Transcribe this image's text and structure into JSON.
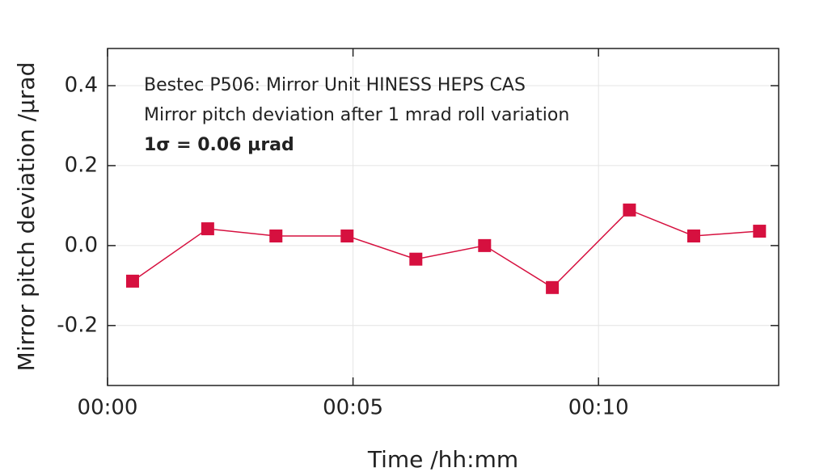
{
  "chart_data": {
    "type": "line",
    "annotations": [
      "Bestec P506: Mirror Unit HINESS HEPS CAS",
      "Mirror pitch deviation after 1 mrad roll variation",
      "1σ = 0.06 µrad"
    ],
    "xlabel": "Time /hh:mm",
    "ylabel": "Mirror pitch deviation /µrad",
    "x": [
      0.51,
      2.04,
      3.43,
      4.88,
      6.28,
      7.68,
      9.06,
      10.63,
      11.94,
      13.28
    ],
    "series": [
      {
        "name": "Mirror pitch deviation",
        "color": "#d6103f",
        "values": [
          -0.089,
          0.042,
          0.024,
          0.024,
          -0.034,
          0.0,
          -0.105,
          0.089,
          0.024,
          0.036
        ]
      }
    ],
    "xlim": [
      0,
      13.67
    ],
    "ylim": [
      -0.35,
      0.493
    ],
    "xticks": [
      {
        "value": 0,
        "label": "00:00"
      },
      {
        "value": 5,
        "label": "00:05"
      },
      {
        "value": 10,
        "label": "00:10"
      }
    ],
    "yticks": [
      {
        "value": -0.2,
        "label": "-0.2"
      },
      {
        "value": 0,
        "label": "0.0"
      },
      {
        "value": 0.2,
        "label": "0.2"
      },
      {
        "value": 0.4,
        "label": "0.4"
      }
    ],
    "grid": true
  }
}
